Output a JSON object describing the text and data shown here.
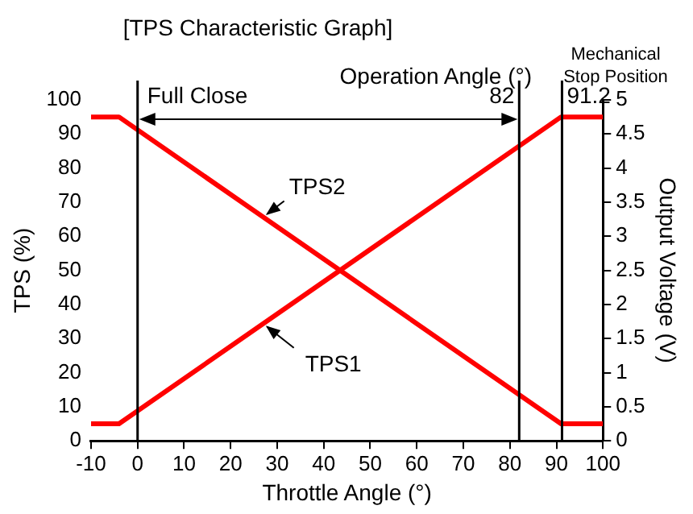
{
  "chart_data": {
    "type": "line",
    "title": "[TPS Characteristic Graph]",
    "xlabel": "Throttle Angle (°)",
    "ylabel": "TPS (%)",
    "y2label": "Output Voltage (V)",
    "series": [
      {
        "name": "TPS1",
        "color": "#ff0000",
        "x": [
          -10,
          -4,
          91,
          100
        ],
        "values": [
          5,
          5,
          95,
          95
        ]
      },
      {
        "name": "TPS2",
        "color": "#ff0000",
        "x": [
          -10,
          -4,
          91,
          100
        ],
        "values": [
          95,
          95,
          5,
          5
        ]
      }
    ],
    "xlim": [
      -10,
      100
    ],
    "xticks": [
      -10,
      0,
      10,
      20,
      30,
      40,
      50,
      60,
      70,
      80,
      90,
      100
    ],
    "ylim": [
      0,
      100
    ],
    "yticks": [
      0,
      10,
      20,
      30,
      40,
      50,
      60,
      70,
      80,
      90,
      100
    ],
    "y2lim": [
      0,
      5
    ],
    "y2ticks": [
      0,
      0.5,
      1,
      1.5,
      2,
      2.5,
      3,
      3.5,
      4,
      4.5,
      5
    ],
    "ref_lines": [
      {
        "axis": "x",
        "value": 0,
        "label": "Full Close",
        "color": "#000000"
      },
      {
        "axis": "x",
        "value": 82,
        "label": "82",
        "color": "#000000"
      },
      {
        "axis": "x",
        "value": 91.2,
        "label": "91.2",
        "color": "#000000"
      }
    ],
    "annotations": [
      "Operation Angle (°)",
      "Mechanical Stop Position"
    ],
    "grid": false,
    "legend": false,
    "marker": "none",
    "line_style": "solid"
  }
}
